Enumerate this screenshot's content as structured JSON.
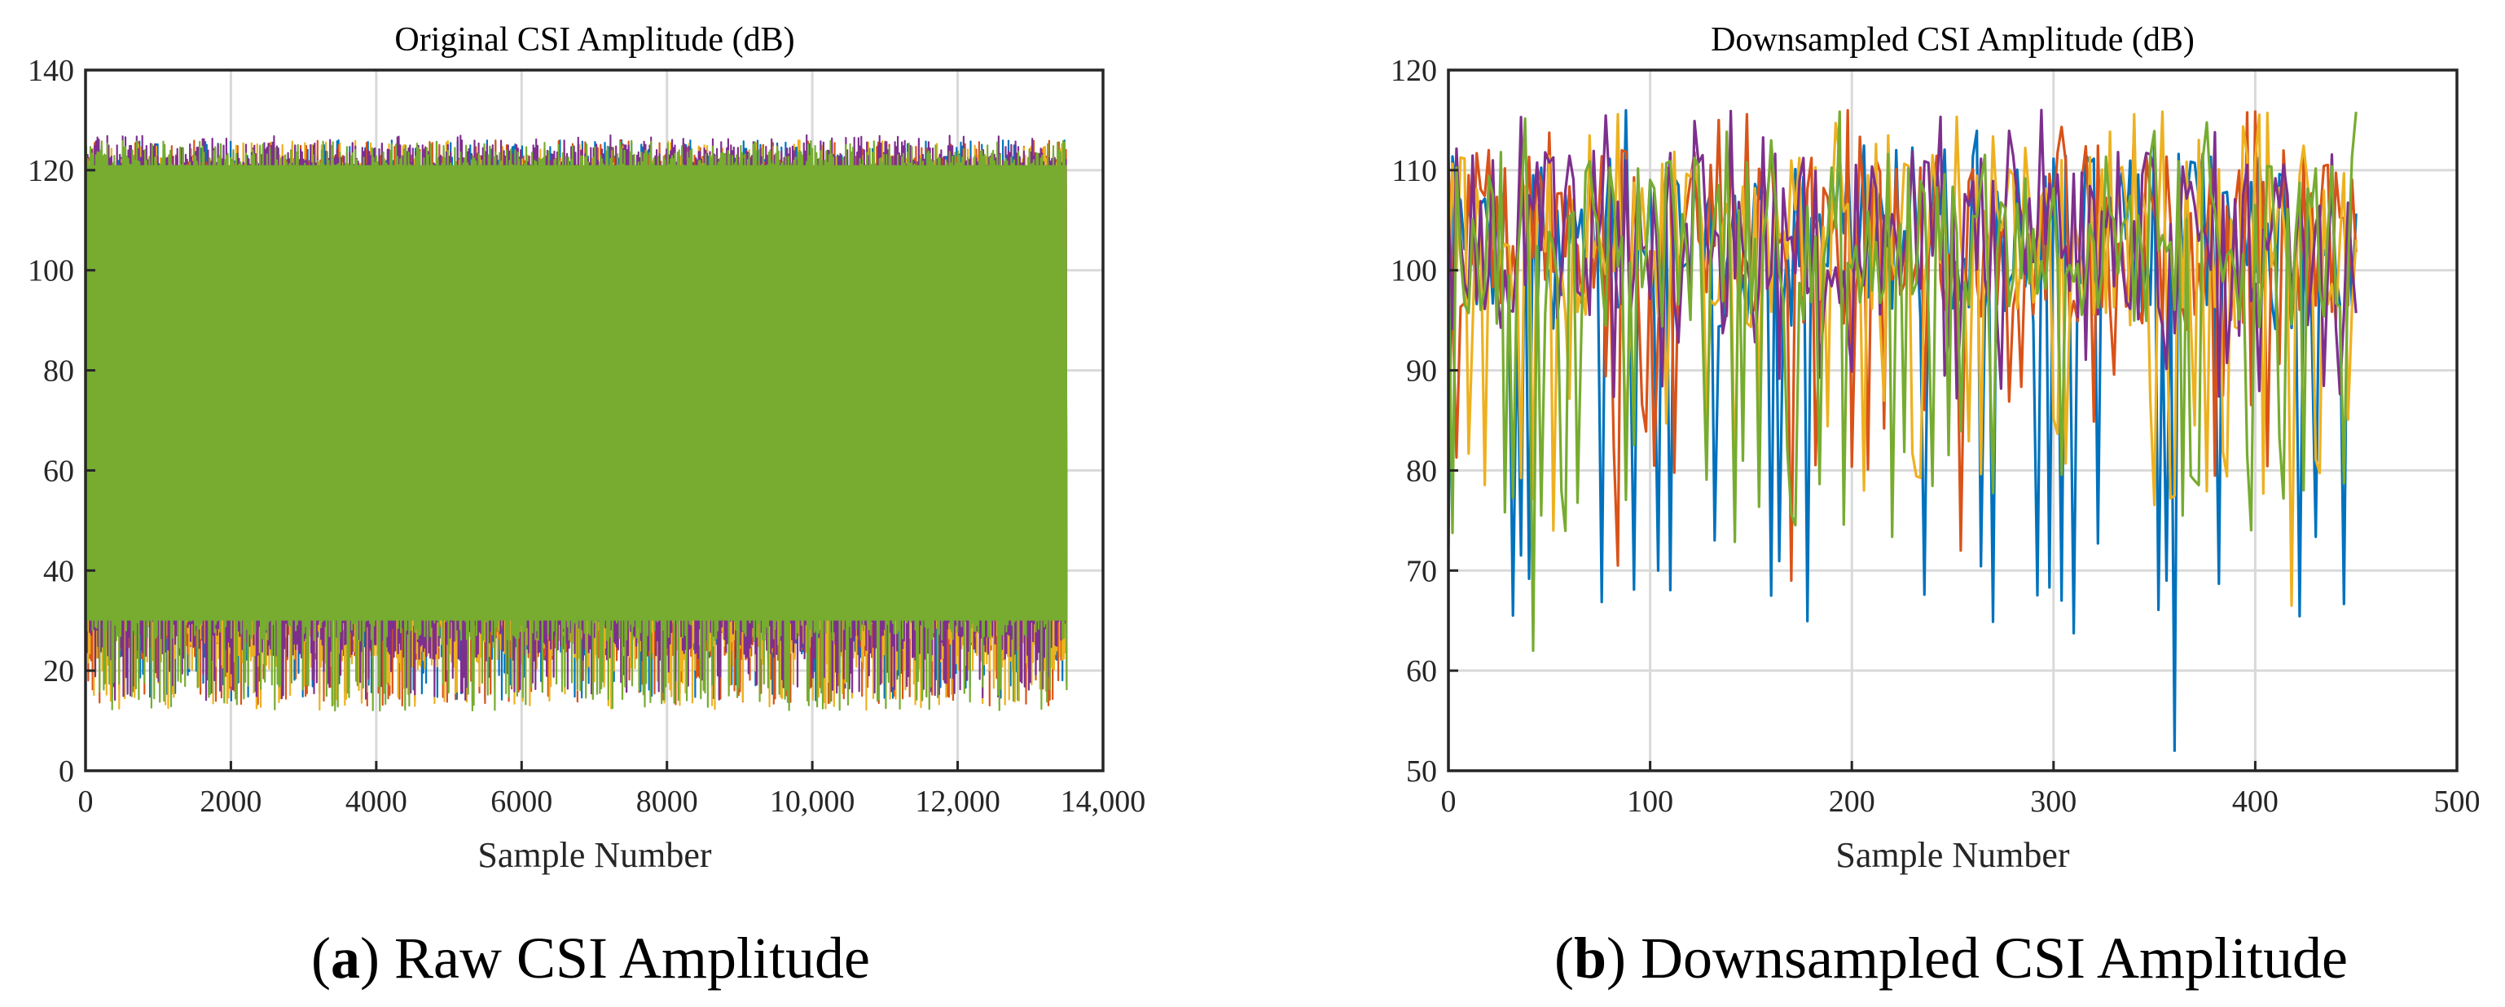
{
  "chart_data": [
    {
      "id": "a",
      "type": "line",
      "title": "Original CSI Amplitude (dB)",
      "xlabel": "Sample Number",
      "ylabel": "",
      "xlim": [
        0,
        14000
      ],
      "ylim": [
        0,
        140
      ],
      "grid": true,
      "x_ticks": [
        0,
        2000,
        4000,
        6000,
        8000,
        10000,
        12000,
        14000
      ],
      "x_tick_labels": [
        "0",
        "2000",
        "4000",
        "6000",
        "8000",
        "10,000",
        "12,000",
        "14,000"
      ],
      "y_ticks": [
        0,
        20,
        40,
        60,
        80,
        100,
        120,
        140
      ],
      "y_tick_labels": [
        "0",
        "20",
        "40",
        "60",
        "80",
        "100",
        "120",
        "140"
      ],
      "x_extent": [
        0,
        13500
      ],
      "series": [
        {
          "name": "series-1",
          "color": "#0072BD",
          "min": 14,
          "max": 126,
          "typical_low": 22,
          "typical_high": 123
        },
        {
          "name": "series-2",
          "color": "#D95319",
          "min": 13,
          "max": 126,
          "typical_low": 22,
          "typical_high": 123
        },
        {
          "name": "series-3",
          "color": "#EDB120",
          "min": 12,
          "max": 126,
          "typical_low": 20,
          "typical_high": 123
        },
        {
          "name": "series-4",
          "color": "#7E2F8E",
          "min": 14,
          "max": 127,
          "typical_low": 22,
          "typical_high": 125
        },
        {
          "name": "series-5",
          "color": "#77AC30",
          "min": 12,
          "max": 126,
          "typical_low": 26,
          "typical_high": 124
        }
      ]
    },
    {
      "id": "b",
      "type": "line",
      "title": "Downsampled CSI Amplitude (dB)",
      "xlabel": "Sample Number",
      "ylabel": "",
      "xlim": [
        0,
        500
      ],
      "ylim": [
        50,
        120
      ],
      "grid": true,
      "x_ticks": [
        0,
        100,
        200,
        300,
        400,
        500
      ],
      "x_tick_labels": [
        "0",
        "100",
        "200",
        "300",
        "400",
        "500"
      ],
      "y_ticks": [
        50,
        60,
        70,
        80,
        90,
        100,
        110,
        120
      ],
      "y_tick_labels": [
        "50",
        "60",
        "70",
        "80",
        "90",
        "100",
        "110",
        "120"
      ],
      "x_extent": [
        0,
        450
      ],
      "series": [
        {
          "name": "series-1",
          "color": "#0072BD",
          "min": 52,
          "max": 116,
          "notable_points": [
            [
              361,
              52
            ],
            [
              357,
              69
            ],
            [
              160,
              67.5
            ],
            [
              305,
              67
            ],
            [
              104,
              70
            ]
          ]
        },
        {
          "name": "series-2",
          "color": "#D95319",
          "min": 69,
          "max": 116,
          "notable_points": [
            [
              170,
              69
            ],
            [
              84,
              70.5
            ],
            [
              254,
              72
            ]
          ]
        },
        {
          "name": "series-3",
          "color": "#EDB120",
          "min": 66,
          "max": 116,
          "notable_points": [
            [
              419,
              66.5
            ],
            [
              52,
              74
            ]
          ]
        },
        {
          "name": "series-4",
          "color": "#7E2F8E",
          "min": 77,
          "max": 116,
          "notable_points": [
            [
              294,
              116
            ]
          ]
        },
        {
          "name": "series-5",
          "color": "#77AC30",
          "min": 62,
          "max": 116,
          "notable_points": [
            [
              43,
              62
            ],
            [
              365,
              75.5
            ]
          ]
        }
      ]
    }
  ],
  "captions": [
    {
      "letter": "a",
      "text": " Raw CSI Amplitude"
    },
    {
      "letter": "b",
      "text": " Downsampled CSI Amplitude"
    }
  ]
}
